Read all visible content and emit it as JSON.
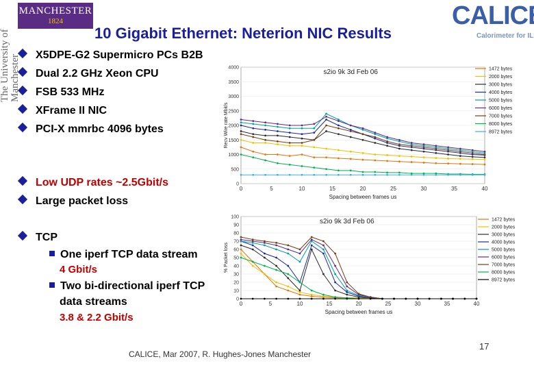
{
  "header": {
    "manchester_logo_name": "MANCHESTER",
    "manchester_logo_year": "1824",
    "university_vertical": "The University of Manchester",
    "calice_logo_word": "CALICE",
    "calice_logo_sub": "Calorimeter for ILC",
    "title": "10 Gigabit Ethernet: Neterion NIC Results"
  },
  "setup_bullets": [
    "X5DPE-G2 Supermicro PCs  B2B",
    "Dual 2.2 GHz Xeon CPU",
    "FSB 533 MHz",
    "XFrame II NIC",
    "PCI-X mmrbc 4096 bytes"
  ],
  "udp_bullets": [
    "Low UDP rates ~2.5Gbit/s",
    "Large packet loss"
  ],
  "tcp": {
    "label": "TCP",
    "items": [
      {
        "text": "One iperf TCP data stream",
        "result": "4 Gbit/s"
      },
      {
        "text_line1": "Two bi-directional iperf TCP",
        "text_line2": "data streams",
        "result": "3.8 & 2.2 Gbit/s"
      }
    ]
  },
  "footer": {
    "text": "CALICE, Mar 2007,  R. Hughes-Jones  Manchester",
    "page": "17"
  },
  "colors": {
    "title": "#1a1f9c",
    "accent_red": "#c00000",
    "bullet": "#1a1f9c",
    "manchester_purple": "#5a2c83",
    "calice_blue": "#3a5fa8"
  },
  "chart_data": [
    {
      "type": "line",
      "title": "s2io 9k 3d Feb 06",
      "xlabel": "Spacing between frames us",
      "ylabel": "Recv Wire rate Mbit/s",
      "xlim": [
        0,
        40
      ],
      "ylim": [
        0,
        4000
      ],
      "x_ticks": [
        0,
        5,
        10,
        15,
        20,
        25,
        30,
        35,
        40
      ],
      "y_ticks": [
        0,
        500,
        1000,
        1500,
        2000,
        2500,
        3000,
        3500,
        4000
      ],
      "legend_position": "right",
      "x": [
        0,
        2,
        4,
        6,
        8,
        10,
        12,
        14,
        16,
        18,
        20,
        22,
        24,
        26,
        28,
        30,
        32,
        34,
        36,
        38,
        40
      ],
      "series": [
        {
          "name": "1472 bytes",
          "color": "#e8730c",
          "values": [
            1250,
            1100,
            1000,
            1000,
            950,
            1000,
            900,
            900,
            870,
            850,
            820,
            800,
            780,
            760,
            740,
            720,
            700,
            690,
            680,
            670,
            660
          ]
        },
        {
          "name": "2000 bytes",
          "color": "#f0c000",
          "values": [
            1500,
            1400,
            1400,
            1350,
            1300,
            1300,
            1250,
            1200,
            1150,
            1100,
            1050,
            1000,
            980,
            950,
            930,
            900,
            880,
            860,
            850,
            840,
            830
          ]
        },
        {
          "name": "3000 bytes",
          "color": "#2a2a2a",
          "values": [
            1800,
            1700,
            1650,
            1650,
            1600,
            1550,
            1500,
            1800,
            1700,
            1600,
            1500,
            1400,
            1300,
            1200,
            1150,
            1100,
            1050,
            1000,
            950,
            920,
            900
          ]
        },
        {
          "name": "4000 bytes",
          "color": "#1a2a9c",
          "values": [
            2000,
            1900,
            1850,
            1800,
            1750,
            1700,
            1750,
            2200,
            2000,
            1850,
            1700,
            1550,
            1400,
            1300,
            1250,
            1200,
            1150,
            1100,
            1050,
            1000,
            980
          ]
        },
        {
          "name": "5000 bytes",
          "color": "#00a0a0",
          "values": [
            2100,
            2050,
            2000,
            1950,
            1900,
            1900,
            1900,
            2400,
            2200,
            2000,
            1850,
            1700,
            1550,
            1450,
            1350,
            1300,
            1250,
            1200,
            1150,
            1100,
            1050
          ]
        },
        {
          "name": "6000 bytes",
          "color": "#5b2a8c",
          "values": [
            2200,
            2150,
            2100,
            2050,
            2000,
            2000,
            2050,
            2300,
            2150,
            2000,
            1900,
            1750,
            1600,
            1500,
            1400,
            1350,
            1300,
            1250,
            1200,
            1150,
            1100
          ]
        },
        {
          "name": "7000 bytes",
          "color": "#7a3a10",
          "values": [
            1700,
            1600,
            1500,
            1450,
            1400,
            1400,
            1500,
            2000,
            1900,
            1800,
            1700,
            1600,
            1450,
            1350,
            1300,
            1250,
            1200,
            1150,
            1100,
            1050,
            1000
          ]
        },
        {
          "name": "8000 bytes",
          "color": "#00b050",
          "values": [
            1000,
            900,
            800,
            700,
            650,
            600,
            550,
            500,
            450,
            450,
            400,
            400,
            380,
            380,
            350,
            350,
            350,
            330,
            330,
            320,
            320
          ]
        },
        {
          "name": "8972 bytes",
          "color": "#3ab0e0",
          "values": [
            300,
            300,
            300,
            300,
            300,
            300,
            300,
            300,
            300,
            300,
            300,
            300,
            300,
            300,
            300,
            300,
            300,
            300,
            300,
            300,
            300
          ]
        }
      ]
    },
    {
      "type": "line",
      "title": "s2io 9k 3d Feb 06",
      "xlabel": "Spacing between frames us",
      "ylabel": "% Packet loss",
      "xlim": [
        0,
        40
      ],
      "ylim": [
        0,
        100
      ],
      "x_ticks": [
        0,
        5,
        10,
        15,
        20,
        25,
        30,
        35,
        40
      ],
      "y_ticks": [
        0,
        10,
        20,
        30,
        40,
        50,
        60,
        70,
        80,
        90,
        100
      ],
      "legend_position": "right",
      "x": [
        0,
        2,
        4,
        6,
        8,
        10,
        12,
        14,
        16,
        18,
        20,
        22,
        24,
        26,
        28,
        30,
        32,
        34,
        36,
        38,
        40
      ],
      "series": [
        {
          "name": "1472 bytes",
          "color": "#e8730c",
          "values": [
            60,
            45,
            30,
            15,
            10,
            5,
            3,
            2,
            1,
            1,
            1,
            1,
            0,
            0,
            0,
            0,
            0,
            0,
            0,
            0,
            0
          ]
        },
        {
          "name": "2000 bytes",
          "color": "#f0c000",
          "values": [
            55,
            40,
            30,
            20,
            15,
            8,
            5,
            3,
            2,
            1,
            1,
            0,
            0,
            0,
            0,
            0,
            0,
            0,
            0,
            0,
            0
          ]
        },
        {
          "name": "3000 bytes",
          "color": "#2a2a2a",
          "values": [
            65,
            60,
            50,
            40,
            25,
            10,
            60,
            30,
            10,
            5,
            2,
            1,
            0,
            0,
            0,
            0,
            0,
            0,
            0,
            0,
            0
          ]
        },
        {
          "name": "4000 bytes",
          "color": "#1a2a9c",
          "values": [
            70,
            65,
            55,
            50,
            40,
            20,
            65,
            55,
            20,
            8,
            3,
            1,
            0,
            0,
            0,
            0,
            0,
            0,
            0,
            0,
            0
          ]
        },
        {
          "name": "5000 bytes",
          "color": "#00a0a0",
          "values": [
            70,
            68,
            65,
            60,
            55,
            45,
            70,
            60,
            30,
            10,
            4,
            2,
            0,
            0,
            0,
            0,
            0,
            0,
            0,
            0,
            0
          ]
        },
        {
          "name": "6000 bytes",
          "color": "#5b2a8c",
          "values": [
            72,
            70,
            68,
            65,
            60,
            55,
            72,
            65,
            40,
            15,
            5,
            2,
            0,
            0,
            0,
            0,
            0,
            0,
            0,
            0,
            0
          ]
        },
        {
          "name": "7000 bytes",
          "color": "#7a3a10",
          "values": [
            75,
            72,
            70,
            68,
            65,
            60,
            75,
            70,
            55,
            20,
            6,
            2,
            0,
            0,
            0,
            0,
            0,
            0,
            0,
            0,
            0
          ]
        },
        {
          "name": "8000 bytes",
          "color": "#00b050",
          "values": [
            50,
            45,
            40,
            35,
            30,
            20,
            10,
            5,
            2,
            1,
            0,
            0,
            0,
            0,
            0,
            0,
            0,
            0,
            0,
            0,
            0
          ]
        },
        {
          "name": "8972 bytes",
          "color": "#000000",
          "values": [
            0,
            0,
            0,
            0,
            0,
            0,
            0,
            0,
            0,
            0,
            0,
            0,
            0,
            0,
            0,
            0,
            0,
            0,
            0,
            0,
            0
          ]
        }
      ]
    }
  ]
}
